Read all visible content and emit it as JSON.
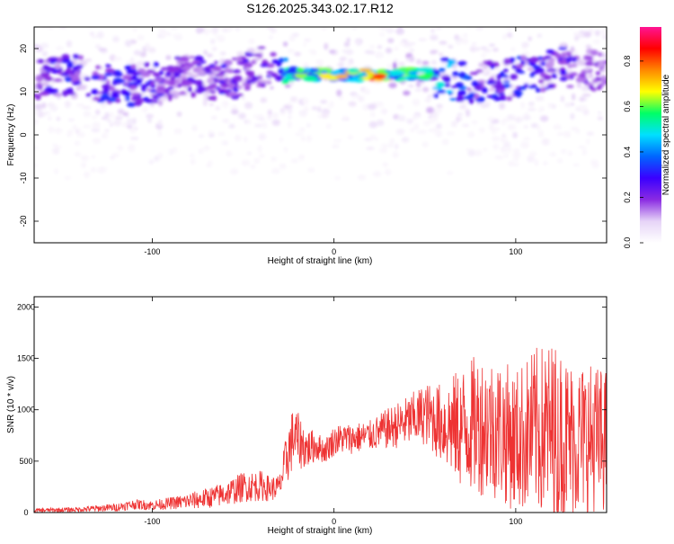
{
  "page_title": "S126.2025.343.02.17.R12",
  "chart_data": [
    {
      "type": "heatmap",
      "xlabel": "Height of straight line (km)",
      "ylabel": "Frequency (Hz)",
      "xlim": [
        -165,
        150
      ],
      "ylim": [
        -25,
        25
      ],
      "x_ticks": [
        -100,
        0,
        100
      ],
      "x_tick_labels": [
        "-100",
        "0",
        "100"
      ],
      "y_ticks": [
        -20,
        -10,
        0,
        10,
        20
      ],
      "y_tick_labels": [
        "-20",
        "-10",
        "0",
        "10",
        "20"
      ],
      "colorbar": {
        "label": "Normalized spectral amplitude",
        "range": [
          0,
          0.95
        ],
        "ticks": [
          0,
          0.2,
          0.4,
          0.6,
          0.8
        ],
        "tick_labels": [
          "0.0",
          "0.2",
          "0.4",
          "0.6",
          "0.8"
        ],
        "colors": [
          "#ffffff",
          "#e6d4f7",
          "#8a2be2",
          "#3a00ff",
          "#0066ff",
          "#00e0ff",
          "#00ff66",
          "#ffff00",
          "#ff8800",
          "#ff0000",
          "#ff1493"
        ]
      },
      "ridge": {
        "x": [
          -165,
          -140,
          -120,
          -100,
          -80,
          -60,
          -40,
          -25,
          0,
          25,
          50,
          75,
          100,
          125,
          150
        ],
        "freq": [
          13,
          14,
          11,
          12,
          14,
          12,
          16,
          14,
          14,
          14,
          14,
          12,
          13,
          16,
          14
        ],
        "amplitude": [
          0.2,
          0.3,
          0.3,
          0.25,
          0.2,
          0.25,
          0.2,
          0.5,
          0.6,
          0.7,
          0.5,
          0.3,
          0.3,
          0.25,
          0.15
        ]
      }
    },
    {
      "type": "line",
      "xlabel": "Height of straight line (km)",
      "ylabel": "SNR (10 * v/v)",
      "xlim": [
        -165,
        150
      ],
      "ylim": [
        0,
        2100
      ],
      "x_ticks": [
        -100,
        0,
        100
      ],
      "x_tick_labels": [
        "-100",
        "0",
        "100"
      ],
      "y_ticks": [
        0,
        500,
        1000,
        1500,
        2000
      ],
      "y_tick_labels": [
        "0",
        "500",
        "1000",
        "1500",
        "2000"
      ],
      "series": [
        {
          "name": "SNR",
          "color": "#ee3333",
          "x": [
            -165,
            -140,
            -120,
            -110,
            -100,
            -90,
            -80,
            -70,
            -60,
            -50,
            -40,
            -35,
            -30,
            -25,
            -22,
            -20,
            -15,
            -10,
            -5,
            0,
            5,
            10,
            20,
            30,
            40,
            50,
            60,
            70,
            80,
            90,
            100,
            110,
            120,
            130,
            140,
            150
          ],
          "mean": [
            20,
            30,
            50,
            80,
            70,
            90,
            110,
            140,
            180,
            250,
            260,
            230,
            250,
            600,
            750,
            700,
            620,
            650,
            600,
            700,
            720,
            720,
            750,
            820,
            880,
            960,
            860,
            820,
            870,
            820,
            700,
            800,
            780,
            700,
            720,
            700
          ],
          "spread": [
            20,
            25,
            40,
            50,
            50,
            60,
            80,
            100,
            120,
            150,
            150,
            120,
            120,
            300,
            300,
            280,
            200,
            150,
            120,
            150,
            150,
            150,
            150,
            200,
            250,
            300,
            400,
            600,
            700,
            700,
            700,
            800,
            900,
            800,
            750,
            700
          ]
        }
      ]
    }
  ]
}
